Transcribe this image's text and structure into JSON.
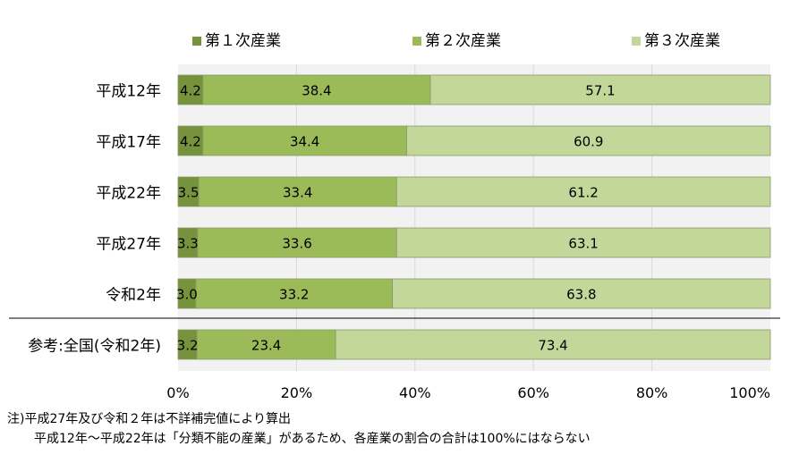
{
  "chart_data": {
    "type": "stacked-bar-horizontal-percent",
    "legend": [
      {
        "name": "第１次産業",
        "color": "#76923c"
      },
      {
        "name": "第２次産業",
        "color": "#9bbb59"
      },
      {
        "name": "第３次産業",
        "color": "#c4d79b"
      }
    ],
    "categories": [
      "平成12年",
      "平成17年",
      "平成22年",
      "平成27年",
      "令和2年",
      "参考:全国(令和2年)"
    ],
    "series": [
      {
        "name": "第１次産業",
        "values": [
          4.2,
          4.2,
          3.5,
          3.3,
          3.0,
          3.2
        ],
        "labels": [
          "4.2",
          "4.2",
          "3.5",
          "3.3",
          "3.0",
          "3.2"
        ]
      },
      {
        "name": "第２次産業",
        "values": [
          38.4,
          34.4,
          33.4,
          33.6,
          33.2,
          23.4
        ],
        "labels": [
          "38.4",
          "34.4",
          "33.4",
          "33.6",
          "33.2",
          "23.4"
        ]
      },
      {
        "name": "第３次産業",
        "values": [
          57.1,
          60.9,
          61.2,
          63.1,
          63.8,
          73.4
        ],
        "labels": [
          "57.1",
          "60.9",
          "61.2",
          "63.1",
          "63.8",
          "73.4"
        ]
      }
    ],
    "xaxis": {
      "ticks": [
        0,
        20,
        40,
        60,
        80,
        100
      ],
      "tick_labels": [
        "0%",
        "20%",
        "40%",
        "60%",
        "80%",
        "100%"
      ],
      "range": [
        0,
        100
      ]
    }
  },
  "notes": [
    "注)平成27年及び令和２年は不詳補完値により算出",
    "平成12年～平成22年は「分類不能の産業」があるため、各産業の割合の合計は100%にはならない"
  ]
}
